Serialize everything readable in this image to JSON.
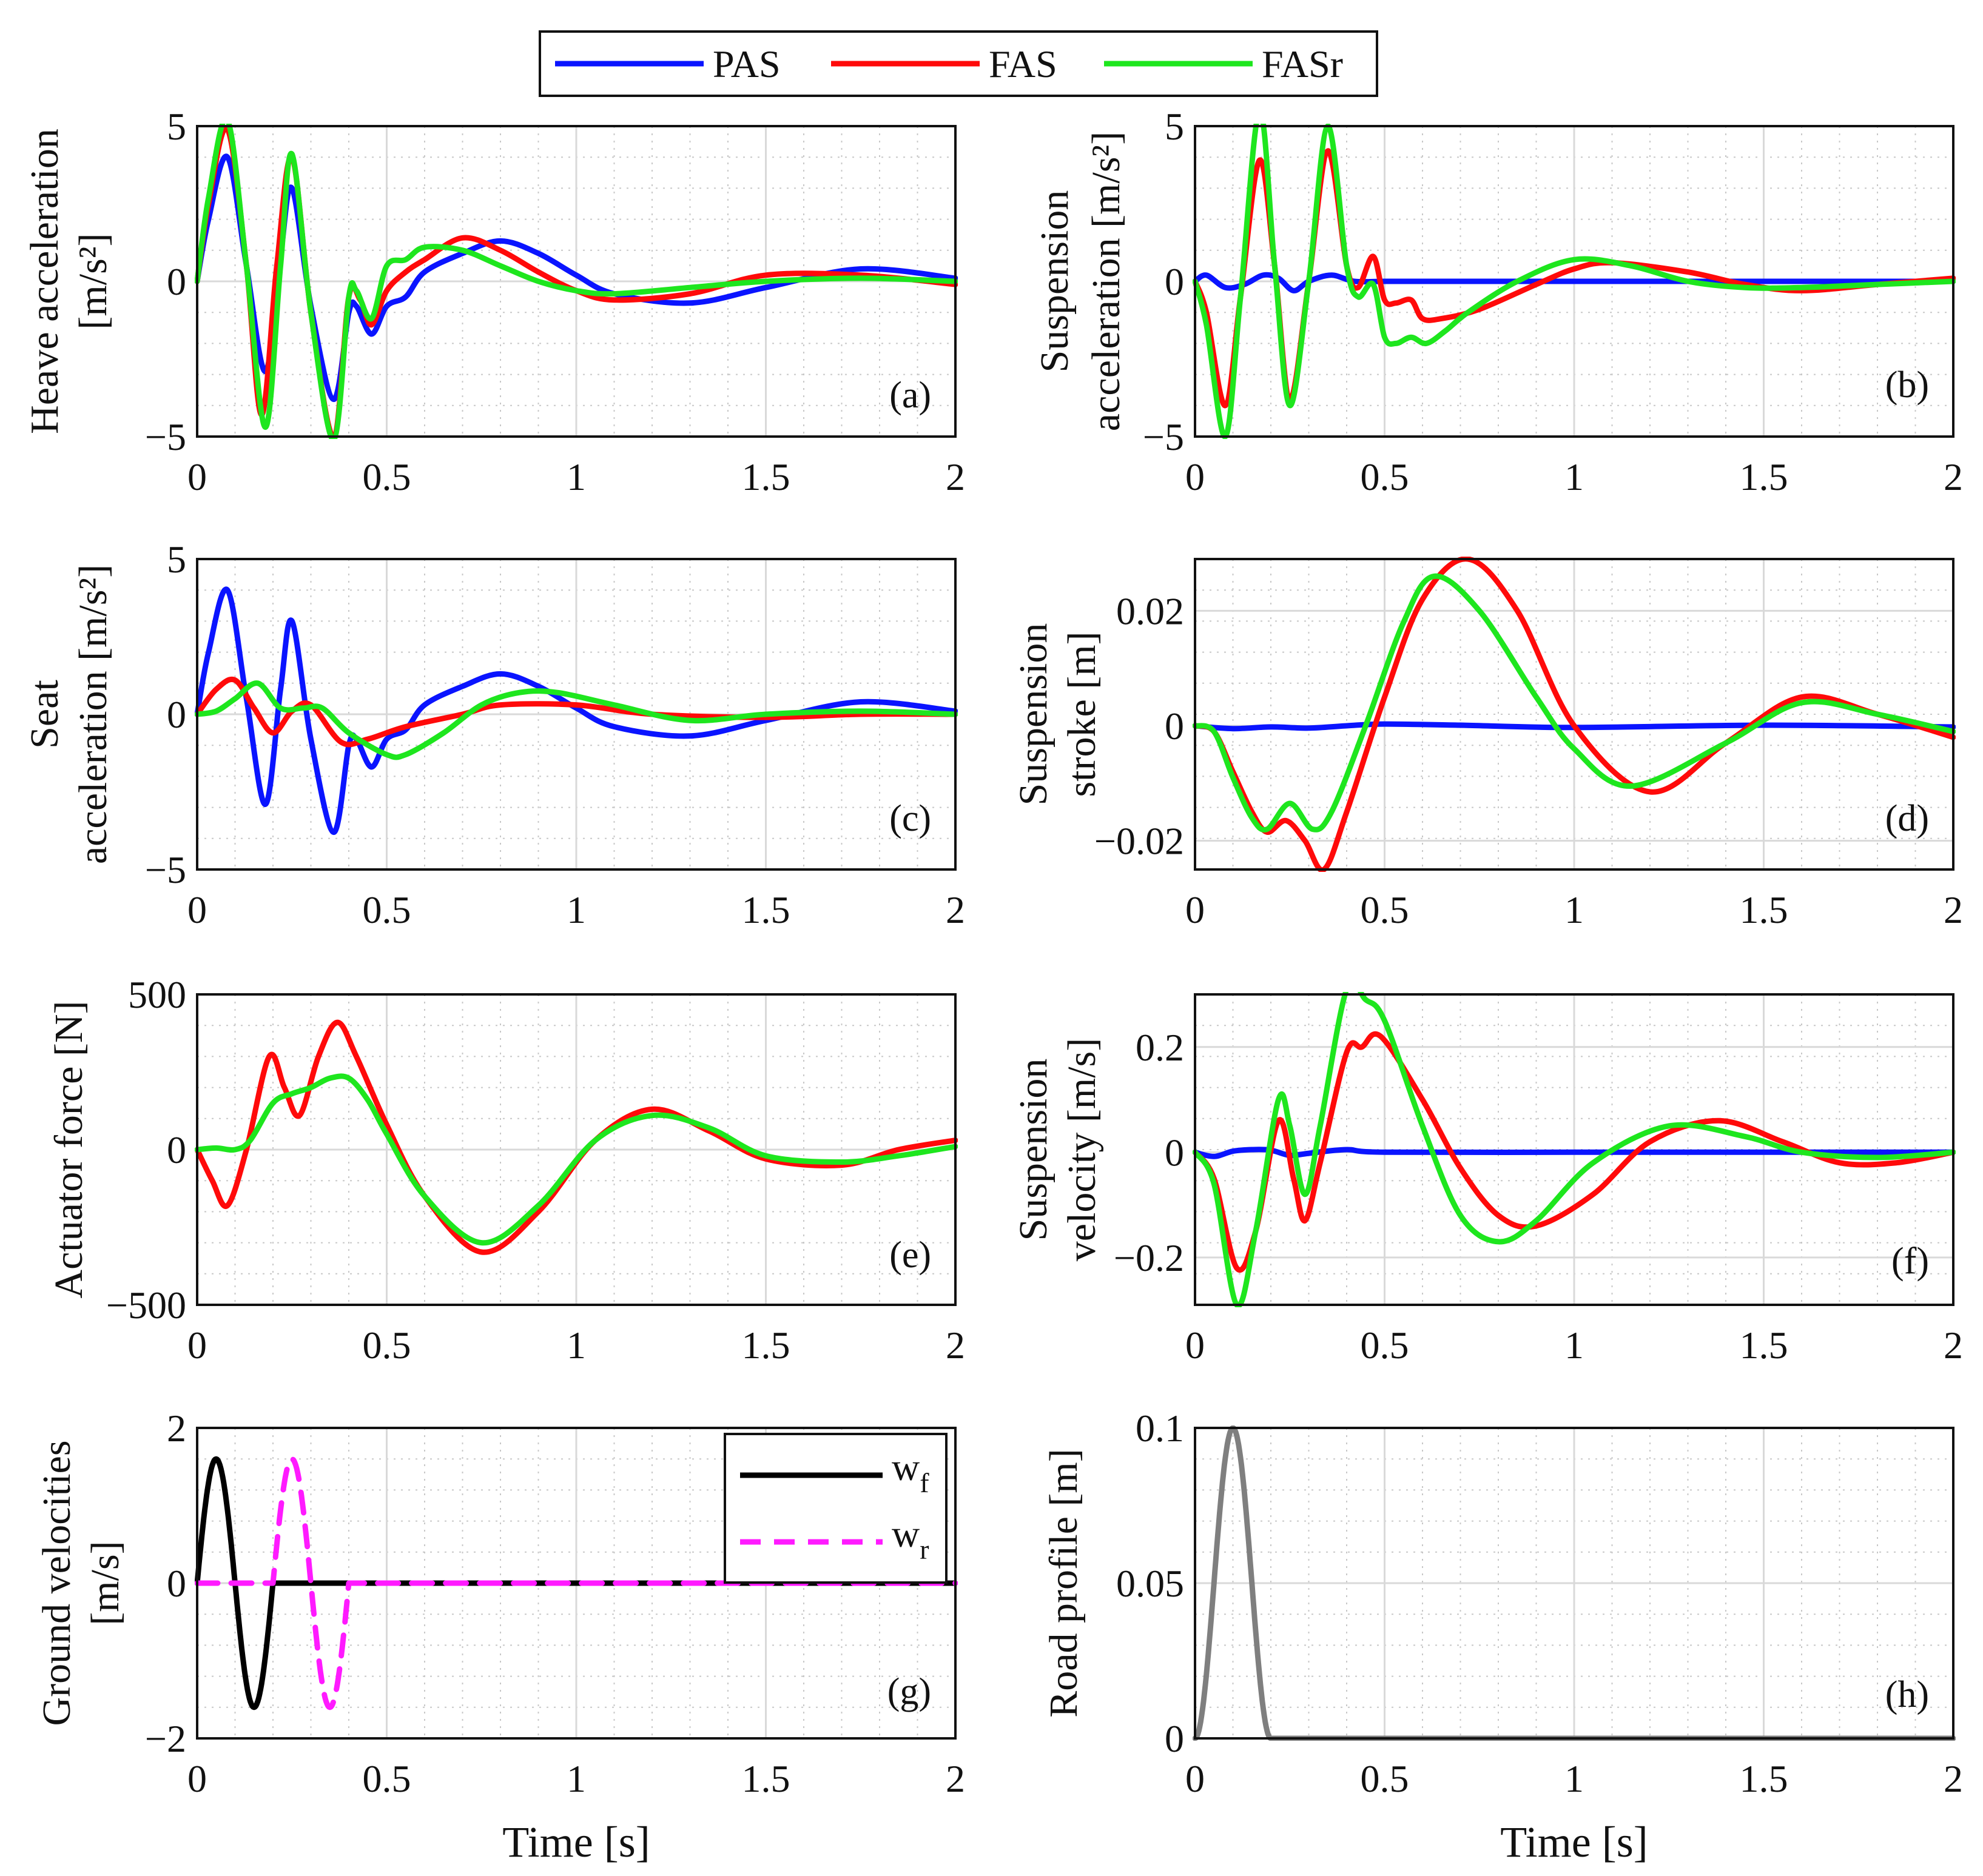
{
  "legend": {
    "items": [
      {
        "name": "PAS",
        "color": "#0a14ff"
      },
      {
        "name": "FAS",
        "color": "#ff0a0a"
      },
      {
        "name": "FASr",
        "color": "#1ee61e"
      }
    ]
  },
  "chart_data": [
    {
      "id": "a",
      "type": "line",
      "panel_label": "(a)",
      "ylabel_lines": [
        "Heave acceleration",
        "[m/s²]"
      ],
      "xlabel": "",
      "xlim": [
        0,
        2
      ],
      "ylim": [
        -5,
        5
      ],
      "xticks": [
        "0",
        "0.5",
        "1",
        "1.5",
        "2"
      ],
      "yticks": [
        "−5",
        "0",
        "5"
      ],
      "ytick_values": [
        -5,
        0,
        5
      ],
      "series": [
        {
          "name": "PAS",
          "color": "#0a14ff",
          "x": [
            0,
            0.03,
            0.08,
            0.13,
            0.18,
            0.22,
            0.25,
            0.3,
            0.36,
            0.4,
            0.42,
            0.46,
            0.5,
            0.55,
            0.6,
            0.7,
            0.8,
            0.9,
            1.0,
            1.1,
            1.3,
            1.5,
            1.75,
            2.0
          ],
          "y": [
            0,
            2.0,
            4.0,
            0.5,
            -2.9,
            0.8,
            3.0,
            -0.8,
            -3.8,
            -1.0,
            -0.8,
            -1.7,
            -0.8,
            -0.5,
            0.3,
            0.9,
            1.3,
            0.9,
            0.2,
            -0.4,
            -0.7,
            -0.2,
            0.4,
            0.1
          ]
        },
        {
          "name": "FAS",
          "color": "#ff0a0a",
          "x": [
            0,
            0.03,
            0.08,
            0.13,
            0.17,
            0.21,
            0.25,
            0.3,
            0.36,
            0.4,
            0.43,
            0.46,
            0.5,
            0.55,
            0.6,
            0.7,
            0.8,
            0.9,
            1.0,
            1.1,
            1.3,
            1.5,
            1.75,
            2.0
          ],
          "y": [
            0,
            2.5,
            4.9,
            0.5,
            -4.3,
            0.5,
            4.0,
            -1.0,
            -5.0,
            -0.5,
            -0.6,
            -1.4,
            -0.3,
            0.3,
            0.7,
            1.4,
            1.0,
            0.3,
            -0.3,
            -0.6,
            -0.4,
            0.2,
            0.2,
            -0.1
          ]
        },
        {
          "name": "FASr",
          "color": "#1ee61e",
          "x": [
            0,
            0.03,
            0.08,
            0.13,
            0.18,
            0.22,
            0.25,
            0.3,
            0.36,
            0.4,
            0.42,
            0.46,
            0.5,
            0.55,
            0.6,
            0.7,
            0.8,
            0.9,
            1.0,
            1.1,
            1.3,
            1.5,
            1.75,
            2.0
          ],
          "y": [
            0,
            2.7,
            5.2,
            0.5,
            -4.7,
            0.5,
            4.1,
            -1.0,
            -5.1,
            -0.5,
            -0.3,
            -1.2,
            0.5,
            0.7,
            1.1,
            1.0,
            0.5,
            0,
            -0.3,
            -0.4,
            -0.2,
            0,
            0.1,
            0
          ]
        }
      ]
    },
    {
      "id": "b",
      "type": "line",
      "panel_label": "(b)",
      "ylabel_lines": [
        "Suspension",
        "acceleration [m/s²]"
      ],
      "xlabel": "",
      "xlim": [
        0,
        2
      ],
      "ylim": [
        -5,
        5
      ],
      "xticks": [
        "0",
        "0.5",
        "1",
        "1.5",
        "2"
      ],
      "yticks": [
        "−5",
        "0",
        "5"
      ],
      "ytick_values": [
        -5,
        0,
        5
      ],
      "series": [
        {
          "name": "PAS",
          "color": "#0a14ff",
          "x": [
            0,
            0.03,
            0.08,
            0.13,
            0.18,
            0.22,
            0.26,
            0.3,
            0.36,
            0.42,
            0.5,
            0.6,
            1.0,
            1.5,
            2.0
          ],
          "y": [
            0,
            0.2,
            -0.2,
            -0.1,
            0.2,
            0.1,
            -0.3,
            0,
            0.2,
            0,
            0,
            0,
            0,
            0,
            0
          ]
        },
        {
          "name": "FAS",
          "color": "#ff0a0a",
          "x": [
            0,
            0.03,
            0.08,
            0.12,
            0.17,
            0.21,
            0.25,
            0.3,
            0.35,
            0.4,
            0.43,
            0.47,
            0.5,
            0.53,
            0.57,
            0.6,
            0.65,
            0.75,
            0.9,
            1.0,
            1.1,
            1.3,
            1.45,
            1.6,
            1.8,
            2.0
          ],
          "y": [
            0,
            -1.0,
            -4.0,
            -0.5,
            3.9,
            0.5,
            -3.8,
            0,
            4.2,
            0.5,
            -0.2,
            0.8,
            -0.6,
            -0.7,
            -0.6,
            -1.2,
            -1.2,
            -0.9,
            -0.1,
            0.4,
            0.6,
            0.3,
            -0.1,
            -0.3,
            -0.1,
            0.1
          ]
        },
        {
          "name": "FASr",
          "color": "#1ee61e",
          "x": [
            0,
            0.03,
            0.08,
            0.12,
            0.17,
            0.21,
            0.25,
            0.3,
            0.35,
            0.4,
            0.43,
            0.47,
            0.5,
            0.53,
            0.57,
            0.61,
            0.66,
            0.72,
            0.85,
            1.0,
            1.15,
            1.3,
            1.45,
            1.6,
            1.8,
            2.0
          ],
          "y": [
            0,
            -1.4,
            -5.0,
            -0.5,
            5.5,
            0.5,
            -4.0,
            0,
            5.0,
            0.5,
            -0.5,
            -0.1,
            -1.8,
            -2.0,
            -1.8,
            -2.0,
            -1.6,
            -1.0,
            0,
            0.7,
            0.5,
            0,
            -0.2,
            -0.2,
            -0.1,
            0
          ]
        }
      ]
    },
    {
      "id": "c",
      "type": "line",
      "panel_label": "(c)",
      "ylabel_lines": [
        "Seat",
        "acceleration [m/s²]"
      ],
      "xlabel": "",
      "xlim": [
        0,
        2
      ],
      "ylim": [
        -5,
        5
      ],
      "xticks": [
        "0",
        "0.5",
        "1",
        "1.5",
        "2"
      ],
      "yticks": [
        "−5",
        "0",
        "5"
      ],
      "ytick_values": [
        -5,
        0,
        5
      ],
      "series": [
        {
          "name": "PAS",
          "color": "#0a14ff",
          "x": [
            0,
            0.03,
            0.08,
            0.13,
            0.18,
            0.22,
            0.25,
            0.3,
            0.36,
            0.4,
            0.42,
            0.46,
            0.5,
            0.55,
            0.6,
            0.7,
            0.8,
            0.9,
            1.0,
            1.1,
            1.3,
            1.5,
            1.75,
            2.0
          ],
          "y": [
            0,
            2.0,
            4.0,
            0.5,
            -2.9,
            0.8,
            3.0,
            -0.8,
            -3.8,
            -1.0,
            -0.8,
            -1.7,
            -0.8,
            -0.5,
            0.3,
            0.9,
            1.3,
            0.9,
            0.2,
            -0.4,
            -0.7,
            -0.2,
            0.4,
            0.1
          ]
        },
        {
          "name": "FAS",
          "color": "#ff0a0a",
          "x": [
            0,
            0.05,
            0.1,
            0.15,
            0.2,
            0.25,
            0.3,
            0.38,
            0.45,
            0.55,
            0.7,
            0.8,
            1.0,
            1.2,
            1.5,
            1.75,
            2.0
          ],
          "y": [
            0,
            0.8,
            1.1,
            0.2,
            -0.6,
            0.1,
            0.3,
            -0.9,
            -0.8,
            -0.4,
            0,
            0.3,
            0.3,
            0,
            -0.1,
            0,
            0
          ]
        },
        {
          "name": "FASr",
          "color": "#1ee61e",
          "x": [
            0,
            0.05,
            0.1,
            0.16,
            0.22,
            0.28,
            0.33,
            0.4,
            0.5,
            0.55,
            0.65,
            0.75,
            0.85,
            0.95,
            1.1,
            1.3,
            1.5,
            1.75,
            2.0
          ],
          "y": [
            0,
            0.1,
            0.5,
            1.0,
            0.2,
            0.2,
            0.2,
            -0.6,
            -1.3,
            -1.3,
            -0.6,
            0.3,
            0.7,
            0.7,
            0.3,
            -0.2,
            0,
            0.1,
            0
          ]
        }
      ]
    },
    {
      "id": "d",
      "type": "line",
      "panel_label": "(d)",
      "ylabel_lines": [
        "Suspension",
        "stroke [m]"
      ],
      "xlabel": "",
      "xlim": [
        0,
        2
      ],
      "ylim": [
        -0.025,
        0.029
      ],
      "xticks": [
        "0",
        "0.5",
        "1",
        "1.5",
        "2"
      ],
      "yticks": [
        "−0.02",
        "0",
        "0.02"
      ],
      "ytick_values": [
        -0.02,
        0,
        0.02
      ],
      "series": [
        {
          "name": "PAS",
          "color": "#0a14ff",
          "x": [
            0,
            0.1,
            0.2,
            0.3,
            0.4,
            0.5,
            0.7,
            1.0,
            1.5,
            2.0
          ],
          "y": [
            0,
            -0.0005,
            -0.0002,
            -0.0004,
            0,
            0.0003,
            0.0001,
            -0.0003,
            0.0001,
            -0.0002
          ]
        },
        {
          "name": "FAS",
          "color": "#ff0a0a",
          "x": [
            0,
            0.05,
            0.1,
            0.15,
            0.19,
            0.24,
            0.29,
            0.34,
            0.4,
            0.5,
            0.6,
            0.72,
            0.85,
            1.0,
            1.2,
            1.4,
            1.6,
            1.8,
            2.0
          ],
          "y": [
            0,
            -0.001,
            -0.008,
            -0.015,
            -0.0185,
            -0.0165,
            -0.02,
            -0.025,
            -0.015,
            0.005,
            0.022,
            0.029,
            0.02,
            0.0,
            -0.0115,
            -0.003,
            0.005,
            0.002,
            -0.002
          ]
        },
        {
          "name": "FASr",
          "color": "#1ee61e",
          "x": [
            0,
            0.05,
            0.1,
            0.15,
            0.19,
            0.25,
            0.31,
            0.36,
            0.45,
            0.55,
            0.63,
            0.75,
            0.9,
            1.0,
            1.15,
            1.4,
            1.6,
            1.8,
            2.0
          ],
          "y": [
            0,
            -0.001,
            -0.009,
            -0.016,
            -0.018,
            -0.0135,
            -0.018,
            -0.015,
            0,
            0.018,
            0.026,
            0.02,
            0.005,
            -0.004,
            -0.0105,
            -0.003,
            0.004,
            0.002,
            -0.001
          ]
        }
      ]
    },
    {
      "id": "e",
      "type": "line",
      "panel_label": "(e)",
      "ylabel_lines": [
        "Actuator force [N]"
      ],
      "xlabel": "",
      "xlim": [
        0,
        2
      ],
      "ylim": [
        -500,
        500
      ],
      "xticks": [
        "0",
        "0.5",
        "1",
        "1.5",
        "2"
      ],
      "yticks": [
        "−500",
        "0",
        "500"
      ],
      "ytick_values": [
        -500,
        0,
        500
      ],
      "series": [
        {
          "name": "FAS",
          "color": "#ff0a0a",
          "x": [
            0,
            0.04,
            0.08,
            0.13,
            0.19,
            0.23,
            0.27,
            0.32,
            0.37,
            0.42,
            0.5,
            0.6,
            0.75,
            0.9,
            1.05,
            1.2,
            1.35,
            1.5,
            1.7,
            1.85,
            2.0
          ],
          "y": [
            0,
            -100,
            -180,
            0,
            300,
            200,
            110,
            300,
            410,
            300,
            80,
            -150,
            -330,
            -200,
            30,
            130,
            60,
            -30,
            -50,
            0,
            30
          ]
        },
        {
          "name": "FASr",
          "color": "#1ee61e",
          "x": [
            0,
            0.05,
            0.1,
            0.14,
            0.2,
            0.25,
            0.3,
            0.35,
            0.4,
            0.45,
            0.5,
            0.6,
            0.75,
            0.9,
            1.05,
            1.2,
            1.35,
            1.5,
            1.7,
            1.85,
            2.0
          ],
          "y": [
            0,
            5,
            0,
            30,
            150,
            180,
            200,
            230,
            230,
            160,
            50,
            -150,
            -300,
            -180,
            30,
            110,
            70,
            -20,
            -40,
            -20,
            10
          ]
        }
      ]
    },
    {
      "id": "f",
      "type": "line",
      "panel_label": "(f)",
      "ylabel_lines": [
        "Suspension",
        "velocity [m/s]"
      ],
      "xlabel": "",
      "xlim": [
        0,
        2
      ],
      "ylim": [
        -0.29,
        0.3
      ],
      "xticks": [
        "0",
        "0.5",
        "1",
        "1.5",
        "2"
      ],
      "yticks": [
        "−0.2",
        "0",
        "0.2"
      ],
      "ytick_values": [
        -0.2,
        0,
        0.2
      ],
      "series": [
        {
          "name": "PAS",
          "color": "#0a14ff",
          "x": [
            0,
            0.05,
            0.1,
            0.15,
            0.2,
            0.25,
            0.3,
            0.4,
            0.5,
            1.0,
            1.5,
            2.0
          ],
          "y": [
            0,
            -0.008,
            0.002,
            0.005,
            0.004,
            -0.006,
            -0.002,
            0.005,
            0,
            0,
            0,
            0
          ]
        },
        {
          "name": "FAS",
          "color": "#ff0a0a",
          "x": [
            0,
            0.05,
            0.11,
            0.16,
            0.22,
            0.26,
            0.29,
            0.33,
            0.4,
            0.44,
            0.49,
            0.6,
            0.7,
            0.8,
            0.9,
            1.05,
            1.2,
            1.38,
            1.55,
            1.7,
            1.85,
            2.0
          ],
          "y": [
            0,
            -0.05,
            -0.22,
            -0.15,
            0.06,
            -0.05,
            -0.13,
            -0.02,
            0.19,
            0.2,
            0.22,
            0.1,
            -0.03,
            -0.12,
            -0.14,
            -0.08,
            0.02,
            0.06,
            0.02,
            -0.02,
            -0.02,
            0
          ]
        },
        {
          "name": "FASr",
          "color": "#1ee61e",
          "x": [
            0,
            0.05,
            0.11,
            0.16,
            0.22,
            0.25,
            0.29,
            0.33,
            0.4,
            0.45,
            0.5,
            0.6,
            0.7,
            0.8,
            0.9,
            1.05,
            1.25,
            1.45,
            1.6,
            1.8,
            2.0
          ],
          "y": [
            0,
            -0.06,
            -0.29,
            -0.15,
            0.1,
            0.05,
            -0.08,
            0.05,
            0.31,
            0.29,
            0.25,
            0.05,
            -0.12,
            -0.17,
            -0.13,
            -0.02,
            0.05,
            0.03,
            0,
            -0.01,
            0
          ]
        }
      ]
    },
    {
      "id": "g",
      "type": "line",
      "panel_label": "(g)",
      "ylabel_lines": [
        "Ground velocities",
        "[m/s]"
      ],
      "xlabel": "Time [s]",
      "xlim": [
        0,
        2
      ],
      "ylim": [
        -2,
        2
      ],
      "xticks": [
        "0",
        "0.5",
        "1",
        "1.5",
        "2"
      ],
      "yticks": [
        "−2",
        "0",
        "2"
      ],
      "ytick_values": [
        -2,
        0,
        2
      ],
      "legend": {
        "position": "top-right",
        "entries": [
          {
            "base": "w",
            "sub": "f"
          },
          {
            "base": "w",
            "sub": "r"
          }
        ]
      },
      "series": [
        {
          "name": "wf",
          "color": "#000000",
          "dash": false,
          "type": "sine",
          "start": 0,
          "end": 0.2,
          "amplitude": 1.6
        },
        {
          "name": "wr",
          "color": "#ff1aff",
          "dash": true,
          "type": "sine",
          "start": 0.2,
          "end": 0.4,
          "amplitude": 1.6
        }
      ]
    },
    {
      "id": "h",
      "type": "line",
      "panel_label": "(h)",
      "ylabel_lines": [
        "Road profile [m]"
      ],
      "xlabel": "Time [s]",
      "xlim": [
        0,
        2
      ],
      "ylim": [
        0,
        0.1
      ],
      "xticks": [
        "0",
        "0.5",
        "1",
        "1.5",
        "2"
      ],
      "yticks": [
        "0",
        "0.05",
        "0.1"
      ],
      "ytick_values": [
        0,
        0.05,
        0.1
      ],
      "series": [
        {
          "name": "Road profile",
          "color": "#7f7f7f",
          "dash": false,
          "type": "bump",
          "start": 0,
          "end": 0.2,
          "amplitude": 0.1
        }
      ]
    }
  ]
}
